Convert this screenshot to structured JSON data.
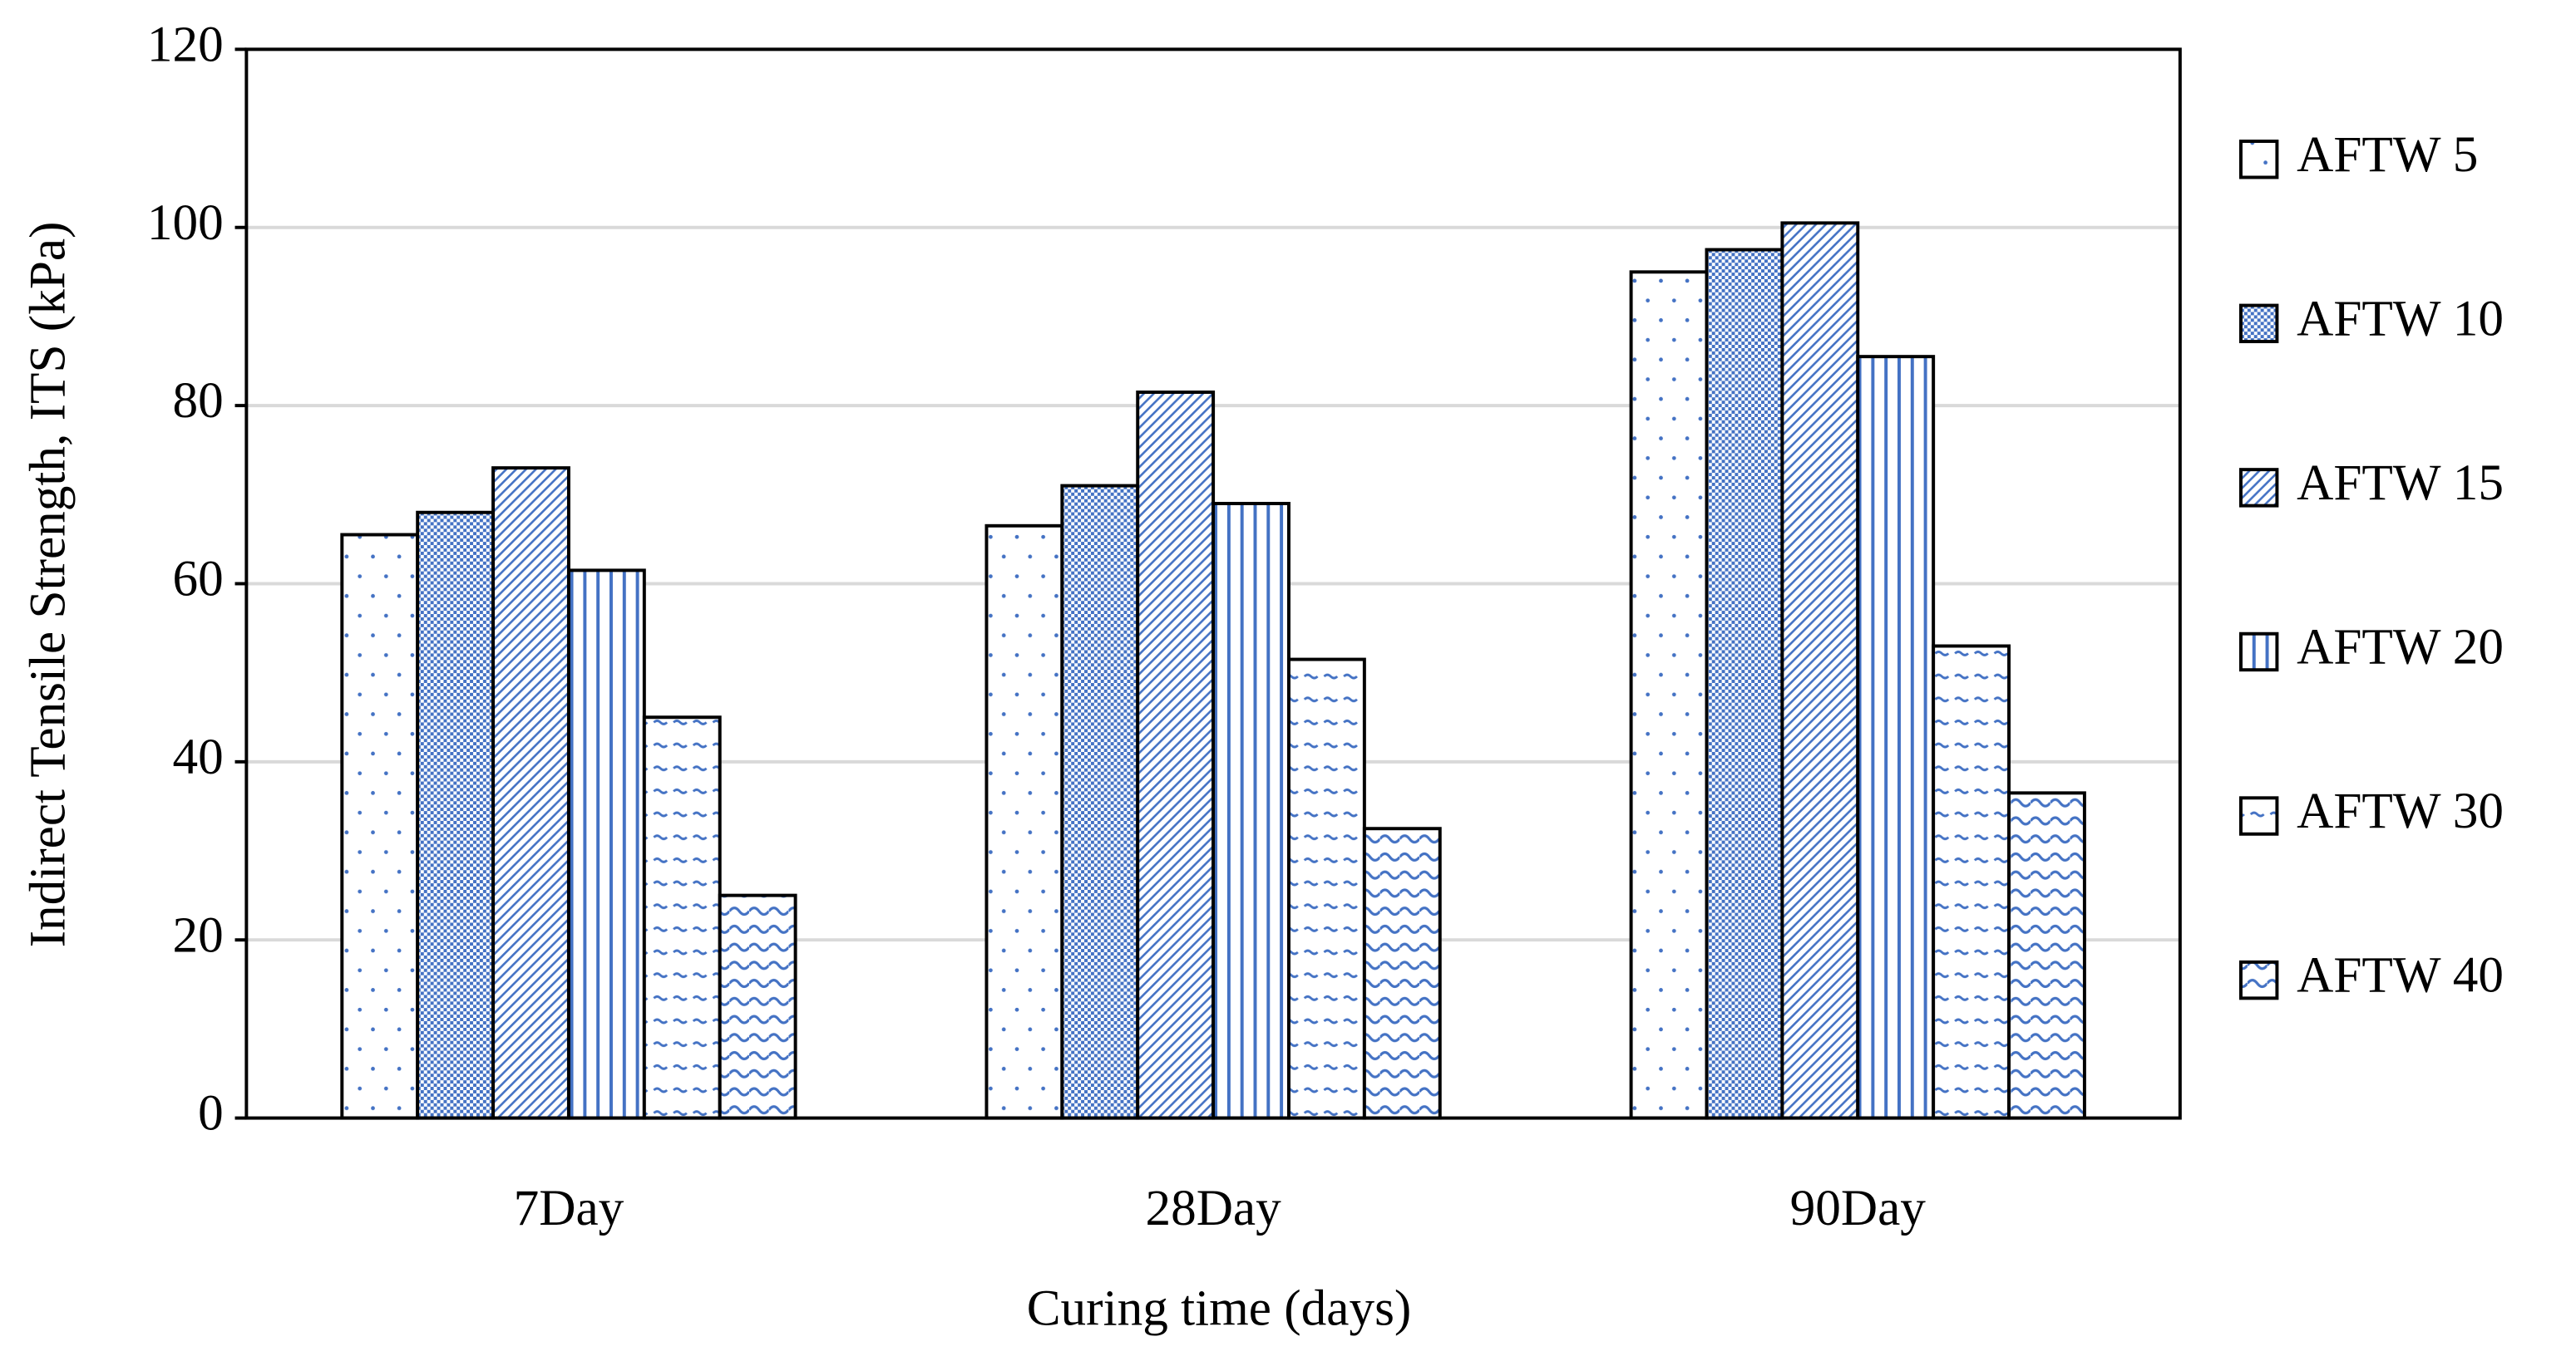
{
  "chart_data": {
    "type": "bar",
    "x_label": "Curing time (days)",
    "y_label": "Indirect Tensile Strength, ITS (kPa)",
    "categories": [
      "7Day",
      "28Day",
      "90Day"
    ],
    "series": [
      {
        "name": "AFTW 5",
        "color": "#4472c4",
        "values": [
          65.5,
          66.5,
          95
        ]
      },
      {
        "name": "AFTW 10",
        "color": "#4472c4",
        "values": [
          68,
          71,
          97.5
        ]
      },
      {
        "name": "AFTW 15",
        "color": "#4472c4",
        "values": [
          73,
          81.5,
          100.5
        ]
      },
      {
        "name": "AFTW 20",
        "color": "#4472c4",
        "values": [
          61.5,
          69,
          85.5
        ]
      },
      {
        "name": "AFTW 30",
        "color": "#4472c4",
        "values": [
          45,
          51.5,
          53
        ]
      },
      {
        "name": "AFTW 40",
        "color": "#4472c4",
        "values": [
          25,
          32.5,
          36.5
        ]
      }
    ],
    "ylim": [
      0,
      120
    ],
    "yticks": [
      0,
      20,
      40,
      60,
      80,
      100,
      120
    ],
    "grid": true,
    "legend": "right"
  }
}
